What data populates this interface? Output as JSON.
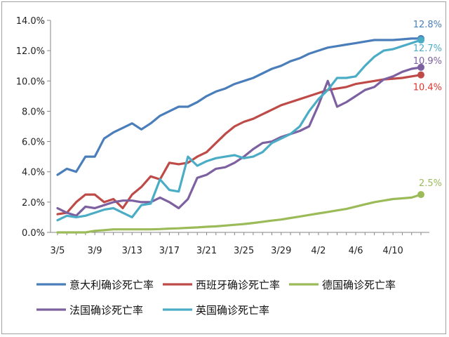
{
  "chart_data": {
    "type": "line",
    "title": "",
    "xlabel": "",
    "ylabel": "",
    "ylim": [
      0,
      14
    ],
    "y_unit": "%",
    "y_ticks": [
      "0.0%",
      "2.0%",
      "4.0%",
      "6.0%",
      "8.0%",
      "10.0%",
      "12.0%",
      "14.0%"
    ],
    "x_tick_labels": [
      "3/5",
      "3/9",
      "3/13",
      "3/17",
      "3/21",
      "3/25",
      "3/29",
      "4/2",
      "4/6",
      "4/10"
    ],
    "grid": false,
    "legend_position": "bottom",
    "x": [
      "3/5",
      "3/6",
      "3/7",
      "3/8",
      "3/9",
      "3/10",
      "3/11",
      "3/12",
      "3/13",
      "3/14",
      "3/15",
      "3/16",
      "3/17",
      "3/18",
      "3/19",
      "3/20",
      "3/21",
      "3/22",
      "3/23",
      "3/24",
      "3/25",
      "3/26",
      "3/27",
      "3/28",
      "3/29",
      "3/30",
      "3/31",
      "4/1",
      "4/2",
      "4/3",
      "4/4",
      "4/5",
      "4/6",
      "4/7",
      "4/8",
      "4/9",
      "4/10",
      "4/11",
      "4/12",
      "4/13"
    ],
    "series": [
      {
        "name": "意大利确诊死亡率",
        "color": "#4a7ebb",
        "end_label": "12.8%",
        "end_label_color": "#4a7ebb",
        "values": [
          3.8,
          4.2,
          4.0,
          5.0,
          5.0,
          6.2,
          6.6,
          6.9,
          7.2,
          6.8,
          7.2,
          7.7,
          8.0,
          8.3,
          8.3,
          8.6,
          9.0,
          9.3,
          9.5,
          9.8,
          10.0,
          10.2,
          10.5,
          10.8,
          11.0,
          11.3,
          11.5,
          11.8,
          12.0,
          12.2,
          12.3,
          12.4,
          12.5,
          12.6,
          12.7,
          12.7,
          12.7,
          12.75,
          12.8,
          12.8
        ]
      },
      {
        "name": "西班牙确诊死亡率",
        "color": "#be4b48",
        "end_label": "10.4%",
        "end_label_color": "#e0342b",
        "values": [
          1.2,
          1.3,
          2.0,
          2.5,
          2.5,
          2.0,
          2.2,
          1.6,
          2.5,
          3.0,
          3.7,
          3.5,
          4.6,
          4.5,
          4.6,
          5.0,
          5.3,
          5.9,
          6.5,
          7.0,
          7.3,
          7.5,
          7.8,
          8.1,
          8.4,
          8.6,
          8.8,
          9.0,
          9.2,
          9.4,
          9.5,
          9.6,
          9.8,
          9.9,
          10.0,
          10.1,
          10.15,
          10.2,
          10.3,
          10.4
        ]
      },
      {
        "name": "德国确诊死亡率",
        "color": "#9bbb59",
        "end_label": "2.5%",
        "end_label_color": "#9bbb59",
        "values": [
          0.0,
          0.0,
          0.0,
          0.0,
          0.1,
          0.15,
          0.2,
          0.2,
          0.2,
          0.2,
          0.2,
          0.22,
          0.25,
          0.27,
          0.3,
          0.33,
          0.37,
          0.4,
          0.45,
          0.5,
          0.55,
          0.62,
          0.7,
          0.78,
          0.85,
          0.95,
          1.05,
          1.15,
          1.25,
          1.35,
          1.45,
          1.55,
          1.7,
          1.85,
          2.0,
          2.1,
          2.2,
          2.25,
          2.3,
          2.5
        ]
      },
      {
        "name": "法国确诊死亡率",
        "color": "#7d60a0",
        "end_label": "10.9%",
        "end_label_color": "#7d60a0",
        "values": [
          1.6,
          1.3,
          1.1,
          1.7,
          1.6,
          1.8,
          2.0,
          2.1,
          2.1,
          2.0,
          2.0,
          2.3,
          2.0,
          1.6,
          2.2,
          3.6,
          3.8,
          4.2,
          4.3,
          4.6,
          5.0,
          5.5,
          5.9,
          6.0,
          6.3,
          6.5,
          6.7,
          7.0,
          8.4,
          10.0,
          8.3,
          8.6,
          9.0,
          9.4,
          9.6,
          10.1,
          10.3,
          10.6,
          10.8,
          10.9
        ]
      },
      {
        "name": "英国确诊死亡率",
        "color": "#4bacc6",
        "end_label": "12.7%",
        "end_label_color": "#4bacc6",
        "values": [
          0.8,
          1.1,
          1.0,
          1.1,
          1.3,
          1.5,
          1.6,
          1.3,
          1.0,
          1.8,
          1.9,
          3.5,
          2.8,
          2.7,
          5.0,
          4.4,
          4.7,
          4.9,
          5.0,
          5.1,
          4.9,
          5.0,
          5.3,
          5.9,
          6.2,
          6.5,
          7.0,
          8.0,
          8.8,
          9.4,
          10.2,
          10.2,
          10.3,
          11.0,
          11.6,
          12.0,
          12.1,
          12.3,
          12.5,
          12.7
        ]
      }
    ]
  }
}
